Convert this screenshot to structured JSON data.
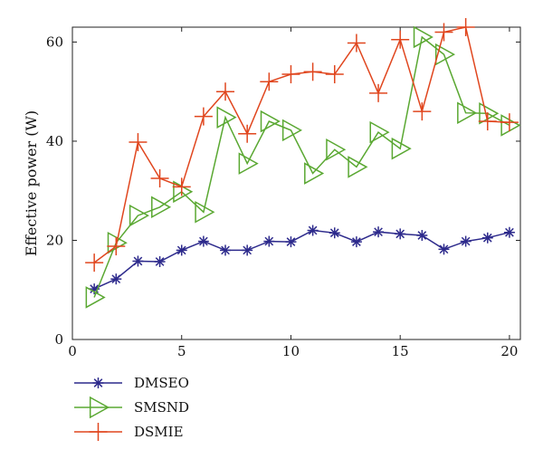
{
  "chart_data": {
    "type": "line",
    "title": "",
    "xlabel": "",
    "ylabel": "Effective power (W)",
    "xlim": [
      0,
      20.5
    ],
    "ylim": [
      0,
      63
    ],
    "xticks": [
      0,
      5,
      10,
      15,
      20
    ],
    "yticks": [
      0,
      20,
      40,
      60
    ],
    "grid": false,
    "legend_position": "bottom-left",
    "x": [
      1,
      2,
      3,
      4,
      5,
      6,
      7,
      8,
      9,
      10,
      11,
      12,
      13,
      14,
      15,
      16,
      17,
      18,
      19,
      20
    ],
    "series": [
      {
        "name": "DMSEO",
        "color": "#2d2a8c",
        "marker": "asterisk",
        "values": [
          10.2,
          12.2,
          15.8,
          15.7,
          18.0,
          19.8,
          18.0,
          18.0,
          19.8,
          19.7,
          22.0,
          21.5,
          19.7,
          21.7,
          21.3,
          21.0,
          18.2,
          19.8,
          20.5,
          21.6
        ]
      },
      {
        "name": "SMSND",
        "color": "#5aa832",
        "marker": "triangle-right",
        "values": [
          8.5,
          19.5,
          25.0,
          26.7,
          29.8,
          25.7,
          44.8,
          35.5,
          44.0,
          42.2,
          33.5,
          38.3,
          34.8,
          41.8,
          38.5,
          61.0,
          57.5,
          45.7,
          45.6,
          43.2
        ]
      },
      {
        "name": "DSMIE",
        "color": "#e0461e",
        "marker": "plus",
        "values": [
          15.5,
          18.8,
          39.8,
          32.5,
          30.8,
          45.0,
          50.0,
          41.5,
          52.0,
          53.5,
          54.0,
          53.5,
          59.8,
          49.7,
          60.5,
          46.0,
          62.0,
          63.0,
          44.0,
          43.8
        ]
      }
    ]
  }
}
